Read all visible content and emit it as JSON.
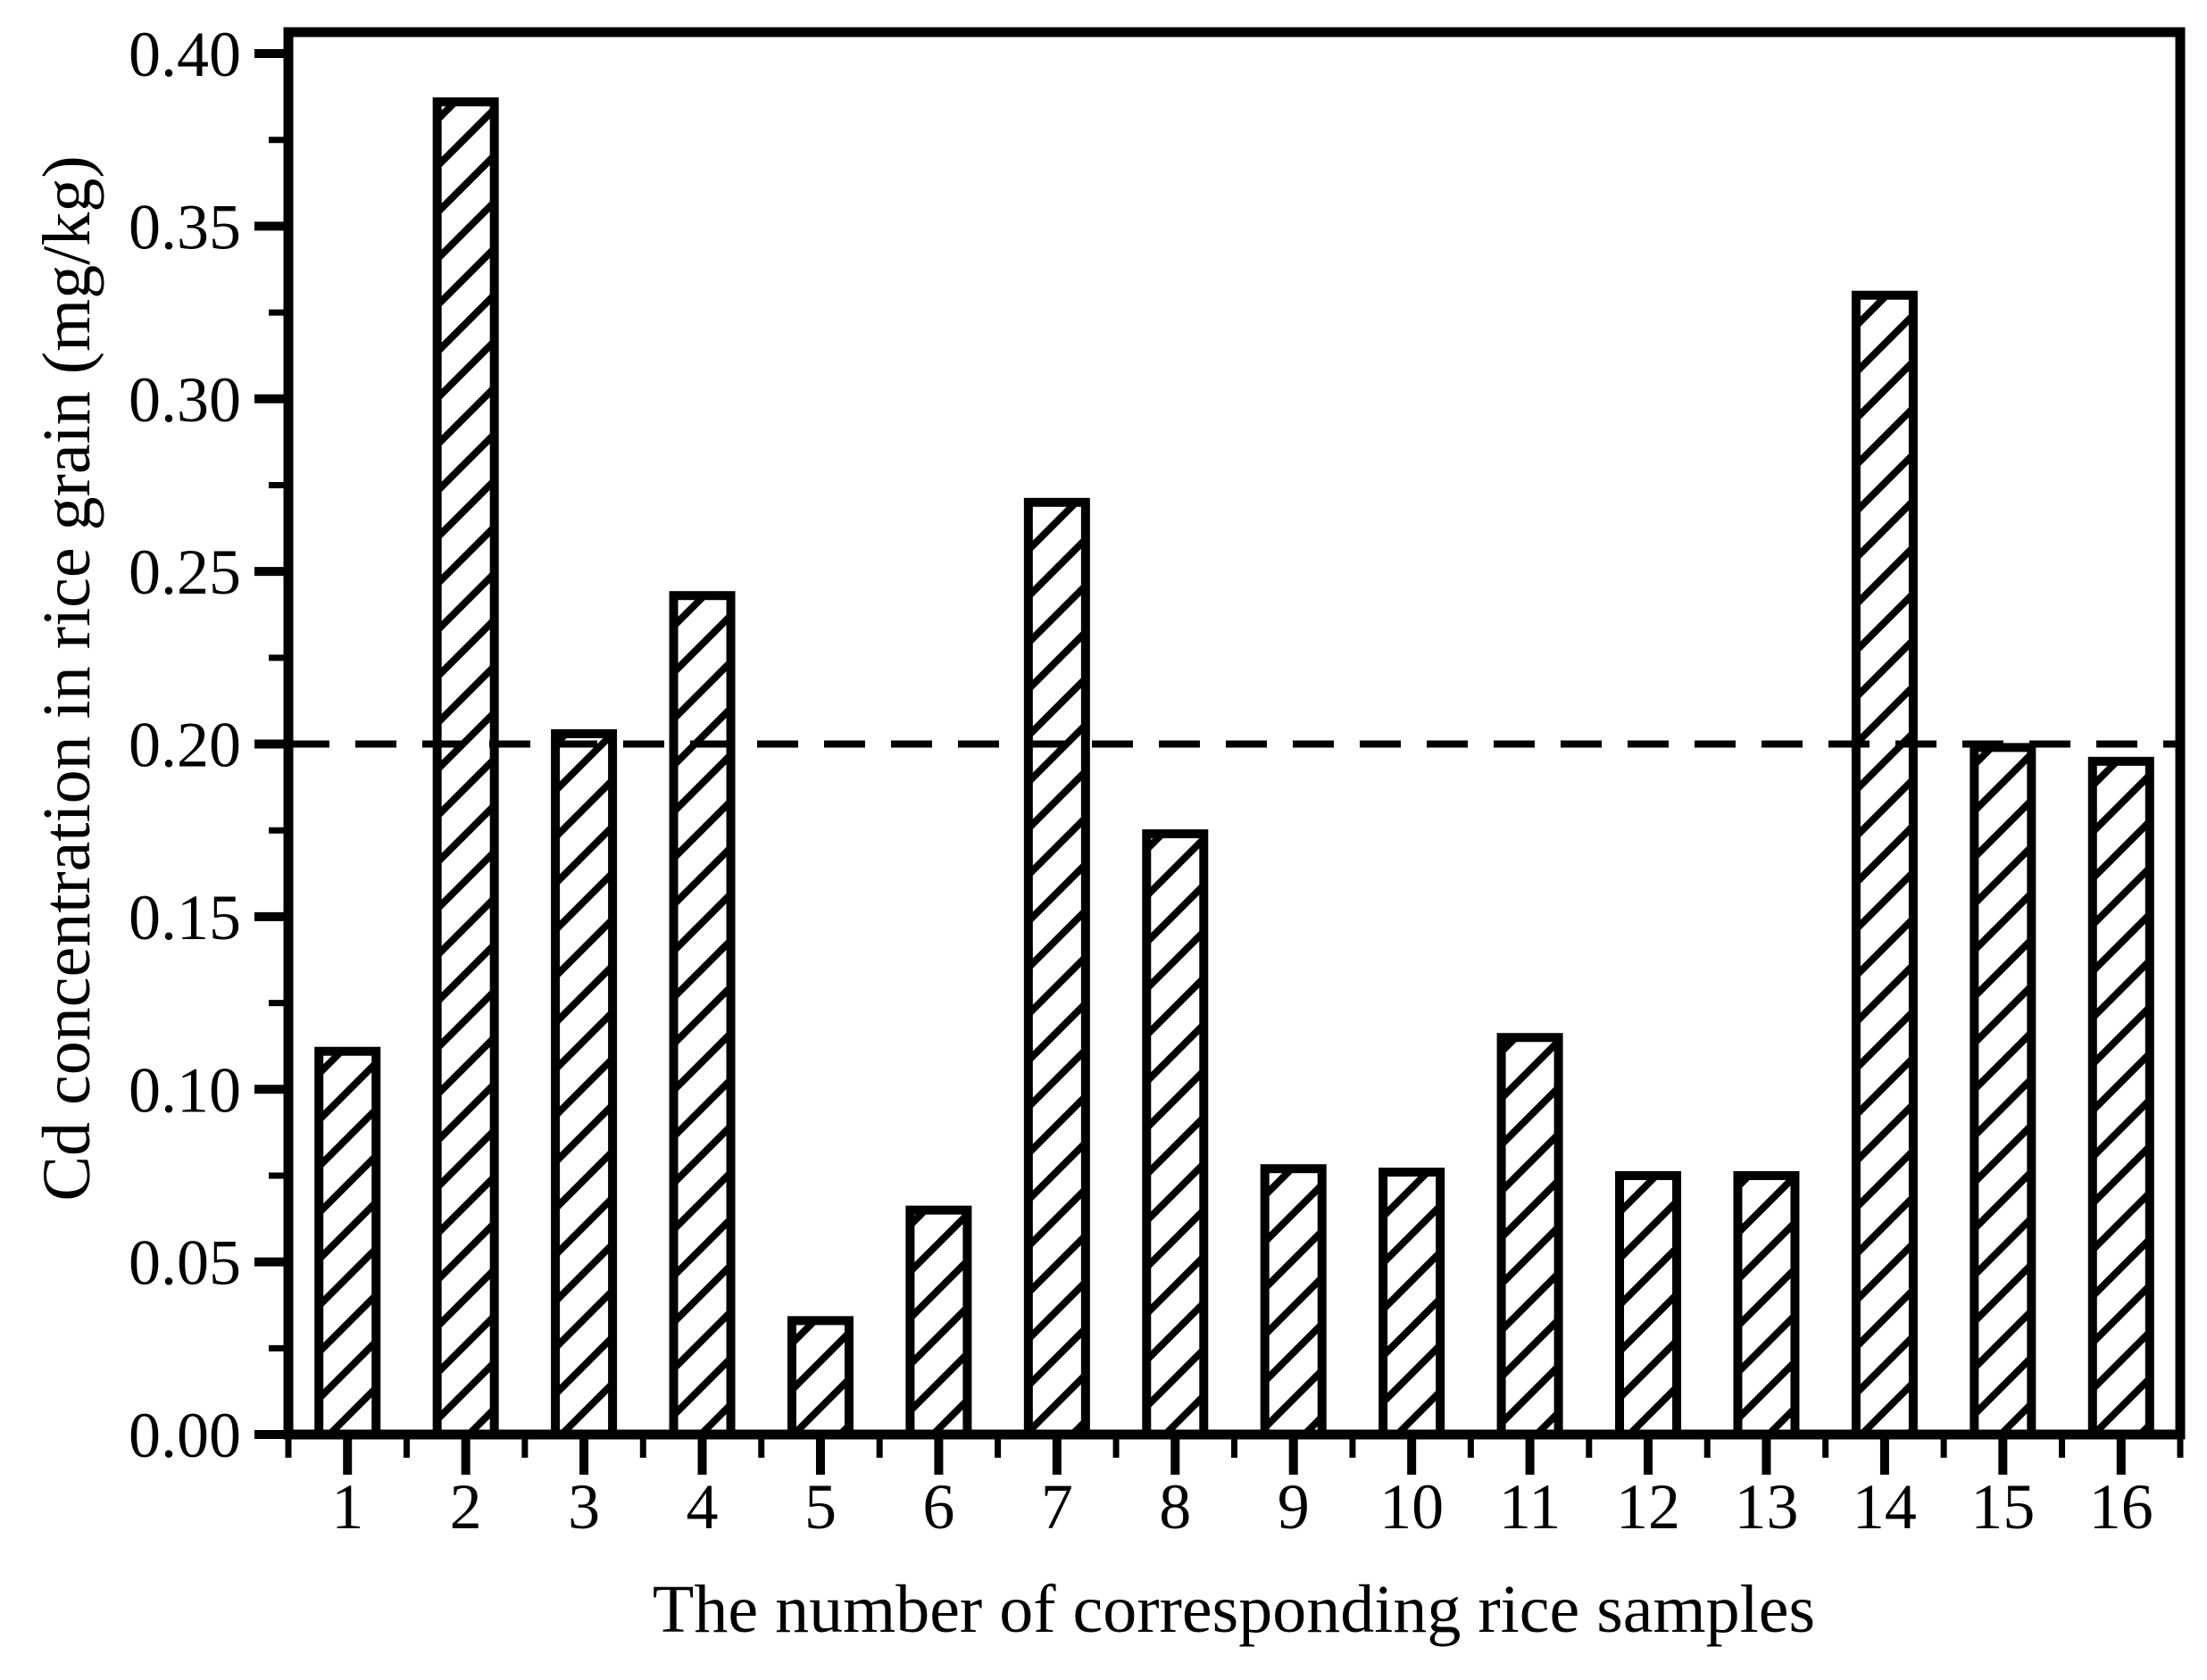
{
  "figure": {
    "background": "#ffffff",
    "foreground": "#000000"
  },
  "chart_data": {
    "type": "bar",
    "title": "",
    "xlabel": "The number of corresponding rice samples",
    "ylabel": "Cd concentration in rice grain (mg/kg)",
    "categories": [
      "1",
      "2",
      "3",
      "4",
      "5",
      "6",
      "7",
      "8",
      "9",
      "10",
      "11",
      "12",
      "13",
      "14",
      "15",
      "16"
    ],
    "values": [
      0.111,
      0.386,
      0.203,
      0.243,
      0.033,
      0.065,
      0.27,
      0.174,
      0.077,
      0.076,
      0.115,
      0.075,
      0.075,
      0.33,
      0.199,
      0.195
    ],
    "ylim": [
      0.0,
      0.4
    ],
    "y_major_step": 0.05,
    "y_minor_step": 0.025,
    "y_tick_labels": [
      "0.00",
      "0.05",
      "0.10",
      "0.15",
      "0.20",
      "0.25",
      "0.30",
      "0.35",
      "0.40"
    ],
    "reference_line": {
      "value": 0.2,
      "style": "dashed",
      "color": "#000000"
    },
    "bar_style": {
      "fill": "#ffffff",
      "hatch": "diagonal-forward",
      "stroke": "#000000"
    },
    "grid": false,
    "legend": null
  }
}
